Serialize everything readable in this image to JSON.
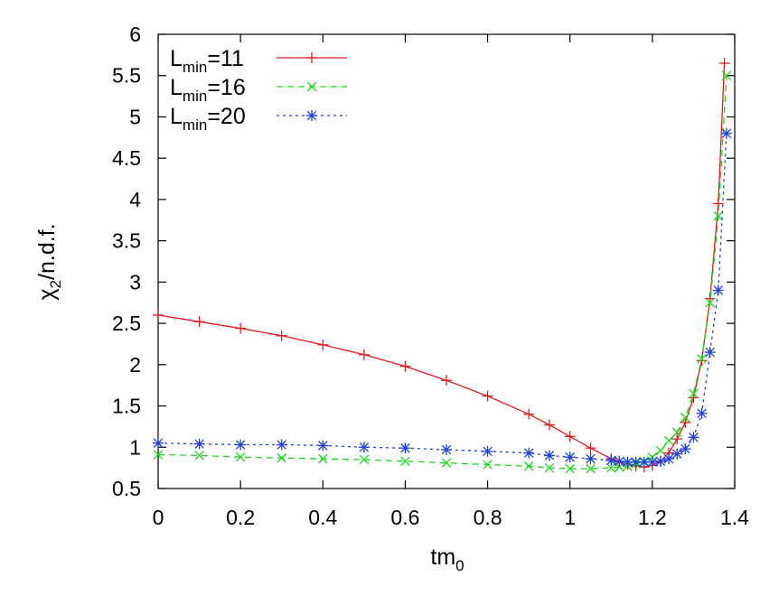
{
  "chart_data": {
    "type": "line",
    "xlabel": {
      "base": "tm",
      "sub": "0"
    },
    "ylabel": {
      "base": "χ",
      "sub": "2",
      "suffix": "/n.d.f."
    },
    "xlim": [
      0,
      1.4
    ],
    "ylim": [
      0.5,
      6
    ],
    "xticks": [
      "0",
      "0.2",
      "0.4",
      "0.6",
      "0.8",
      "1",
      "1.2",
      "1.4"
    ],
    "yticks": [
      "0.5",
      "1",
      "1.5",
      "2",
      "2.5",
      "3",
      "3.5",
      "4",
      "4.5",
      "5",
      "5.5",
      "6"
    ],
    "grid": false,
    "legend_position": "top-left",
    "series": [
      {
        "name": {
          "base": "L",
          "sub": "min",
          "suffix": "=11"
        },
        "color": "#e41a1c",
        "marker": "plus",
        "dash": "none",
        "x": [
          0,
          0.1,
          0.2,
          0.3,
          0.4,
          0.5,
          0.6,
          0.7,
          0.8,
          0.9,
          0.95,
          1.0,
          1.05,
          1.1,
          1.12,
          1.14,
          1.16,
          1.18,
          1.2,
          1.22,
          1.24,
          1.26,
          1.28,
          1.3,
          1.32,
          1.34,
          1.36,
          1.375
        ],
        "y": [
          2.6,
          2.52,
          2.44,
          2.35,
          2.24,
          2.12,
          1.98,
          1.81,
          1.62,
          1.4,
          1.27,
          1.13,
          0.99,
          0.86,
          0.82,
          0.79,
          0.77,
          0.76,
          0.78,
          0.83,
          0.93,
          1.1,
          1.3,
          1.6,
          2.05,
          2.8,
          3.95,
          5.65
        ]
      },
      {
        "name": {
          "base": "L",
          "sub": "min",
          "suffix": "=16"
        },
        "color": "#18d918",
        "marker": "cross",
        "dash": "7,5",
        "x": [
          0,
          0.1,
          0.2,
          0.3,
          0.4,
          0.5,
          0.6,
          0.7,
          0.8,
          0.9,
          0.95,
          1.0,
          1.05,
          1.1,
          1.12,
          1.14,
          1.16,
          1.18,
          1.2,
          1.22,
          1.24,
          1.26,
          1.28,
          1.3,
          1.32,
          1.34,
          1.36,
          1.38
        ],
        "y": [
          0.91,
          0.9,
          0.88,
          0.87,
          0.86,
          0.85,
          0.83,
          0.81,
          0.79,
          0.77,
          0.75,
          0.74,
          0.74,
          0.75,
          0.76,
          0.77,
          0.8,
          0.83,
          0.88,
          0.96,
          1.08,
          1.18,
          1.36,
          1.65,
          2.07,
          2.75,
          3.8,
          5.5
        ]
      },
      {
        "name": {
          "base": "L",
          "sub": "min",
          "suffix": "=20"
        },
        "color": "#1f3fe0",
        "marker": "star",
        "dash": "3,4",
        "x": [
          0,
          0.1,
          0.2,
          0.3,
          0.4,
          0.5,
          0.6,
          0.7,
          0.8,
          0.9,
          0.95,
          1.0,
          1.05,
          1.1,
          1.12,
          1.14,
          1.16,
          1.18,
          1.2,
          1.22,
          1.24,
          1.26,
          1.28,
          1.3,
          1.32,
          1.34,
          1.36,
          1.38
        ],
        "y": [
          1.05,
          1.04,
          1.03,
          1.03,
          1.02,
          1.0,
          0.99,
          0.97,
          0.95,
          0.93,
          0.9,
          0.88,
          0.86,
          0.84,
          0.83,
          0.82,
          0.82,
          0.82,
          0.82,
          0.83,
          0.86,
          0.92,
          0.98,
          1.12,
          1.41,
          2.15,
          2.9,
          4.8
        ]
      }
    ]
  }
}
